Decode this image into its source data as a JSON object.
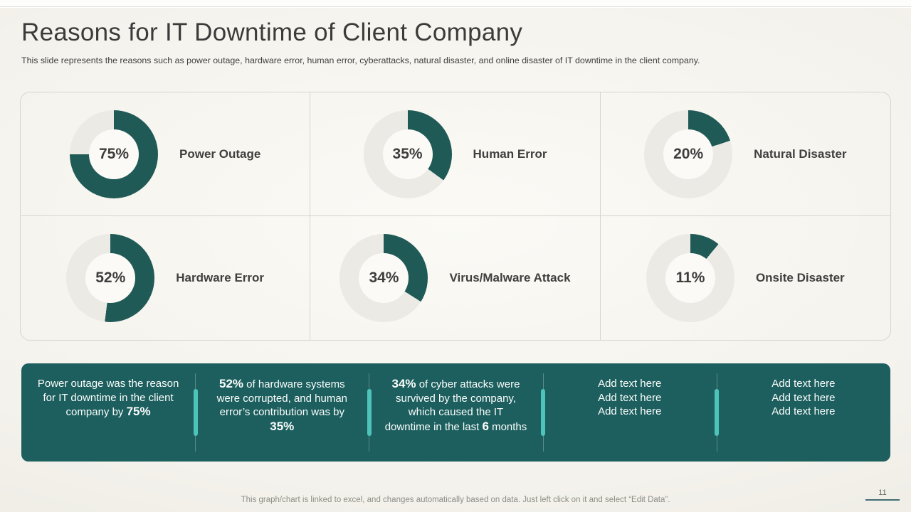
{
  "slide": {
    "title": "Reasons for IT Downtime of Client Company",
    "subtitle": "This slide represents the reasons such as power outage, hardware error, human error, cyberattacks, natural disaster, and online disaster of IT downtime in the client company.",
    "footer_note": "This graph/chart is linked to excel,  and changes automatically based on data. Just left click on it and select “Edit Data”.",
    "page_number": "11"
  },
  "colors": {
    "donut_fill": "#205A56",
    "donut_track": "#EBEAE5",
    "banner_teal": "#1C5F5E",
    "divider_accent": "#4DC3BA"
  },
  "chart_data": {
    "type": "pie",
    "subtype": "donut-progress-grid",
    "start_angle": "top",
    "direction": "clockwise",
    "grid_layout": "2 rows x 3 columns",
    "items": [
      {
        "label": "Power Outage",
        "value": 75,
        "value_label": "75%"
      },
      {
        "label": "Human Error",
        "value": 35,
        "value_label": "35%"
      },
      {
        "label": "Natural Disaster",
        "value": 20,
        "value_label": "20%"
      },
      {
        "label": "Hardware Error",
        "value": 52,
        "value_label": "52%"
      },
      {
        "label": "Virus/Malware Attack",
        "value": 34,
        "value_label": "34%"
      },
      {
        "label": "Onsite Disaster",
        "value": 11,
        "value_label": "11%"
      }
    ]
  },
  "banner": {
    "columns": [
      {
        "segments": [
          {
            "t": "Power outage was the reason for IT downtime in the client company by "
          },
          {
            "t": "75%",
            "b": true
          }
        ]
      },
      {
        "segments": [
          {
            "t": "52%",
            "b": true
          },
          {
            "t": " of hardware systems were corrupted, and human error’s contribution was by "
          },
          {
            "t": "35%",
            "b": true
          }
        ]
      },
      {
        "segments": [
          {
            "t": "34%",
            "b": true
          },
          {
            "t": " of cyber attacks were survived by the company, which caused the IT downtime in the last "
          },
          {
            "t": "6",
            "b": true
          },
          {
            "t": " months"
          }
        ]
      },
      {
        "segments": [
          {
            "t": "Add text here"
          },
          {
            "br": true
          },
          {
            "t": "Add text here"
          },
          {
            "br": true
          },
          {
            "t": "Add text here"
          }
        ]
      },
      {
        "segments": [
          {
            "t": "Add text here"
          },
          {
            "br": true
          },
          {
            "t": "Add text here"
          },
          {
            "br": true
          },
          {
            "t": "Add text here"
          }
        ]
      }
    ]
  }
}
